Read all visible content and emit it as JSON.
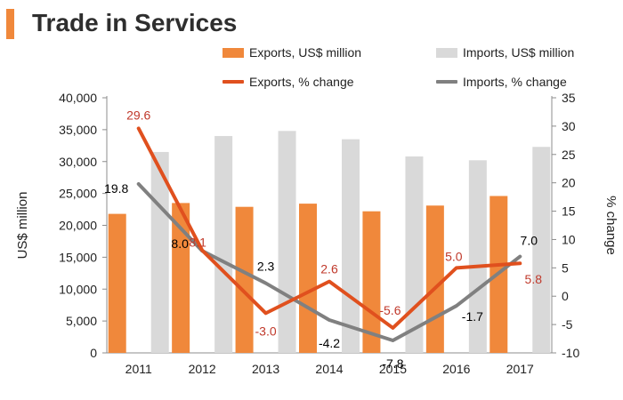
{
  "title": "Trade in Services",
  "colors": {
    "accent": "#f0883b",
    "exports_bar": "#f0883b",
    "imports_bar": "#d9d9d9",
    "exports_line": "#e0501e",
    "imports_line": "#808080",
    "exports_label": "#c0392b",
    "imports_label": "#000000"
  },
  "legend": {
    "exports_bar": "Exports, US$ million",
    "imports_bar": "Imports, US$ million",
    "exports_line": "Exports, % change",
    "imports_line": "Imports, % change"
  },
  "chart_data": {
    "type": "bar",
    "title": "Trade in Services",
    "categories": [
      "2011",
      "2012",
      "2013",
      "2014",
      "2015",
      "2016",
      "2017"
    ],
    "ylabel": "US$ million",
    "ylim": [
      0,
      40000
    ],
    "yticks": [
      "0",
      "5,000",
      "10,000",
      "15,000",
      "20,000",
      "25,000",
      "30,000",
      "35,000",
      "40,000"
    ],
    "y2label": "% change",
    "y2lim": [
      -10,
      35
    ],
    "y2ticks": [
      "-10",
      "-5",
      "0",
      "5",
      "10",
      "15",
      "20",
      "25",
      "30",
      "35"
    ],
    "series": [
      {
        "name": "Exports, US$ million",
        "type": "bar",
        "axis": "left",
        "values": [
          21800,
          23500,
          22900,
          23400,
          22200,
          23100,
          24600
        ]
      },
      {
        "name": "Imports, US$ million",
        "type": "bar",
        "axis": "left",
        "values": [
          31500,
          34000,
          34800,
          33500,
          30800,
          30200,
          32300
        ]
      },
      {
        "name": "Exports, % change",
        "type": "line",
        "axis": "right",
        "values": [
          29.6,
          8.1,
          -3.0,
          2.6,
          -5.6,
          5.0,
          5.8
        ],
        "labels": [
          "29.6",
          "8.1",
          "-3.0",
          "2.6",
          "-5.6",
          "5.0",
          "5.8"
        ]
      },
      {
        "name": "Imports, % change",
        "type": "line",
        "axis": "right",
        "values": [
          19.8,
          8.0,
          2.3,
          -4.2,
          -7.8,
          -1.7,
          7.0
        ],
        "labels": [
          "19.8",
          "8.0",
          "2.3",
          "-4.2",
          "-7.8",
          "-1.7",
          "7.0"
        ]
      }
    ]
  }
}
